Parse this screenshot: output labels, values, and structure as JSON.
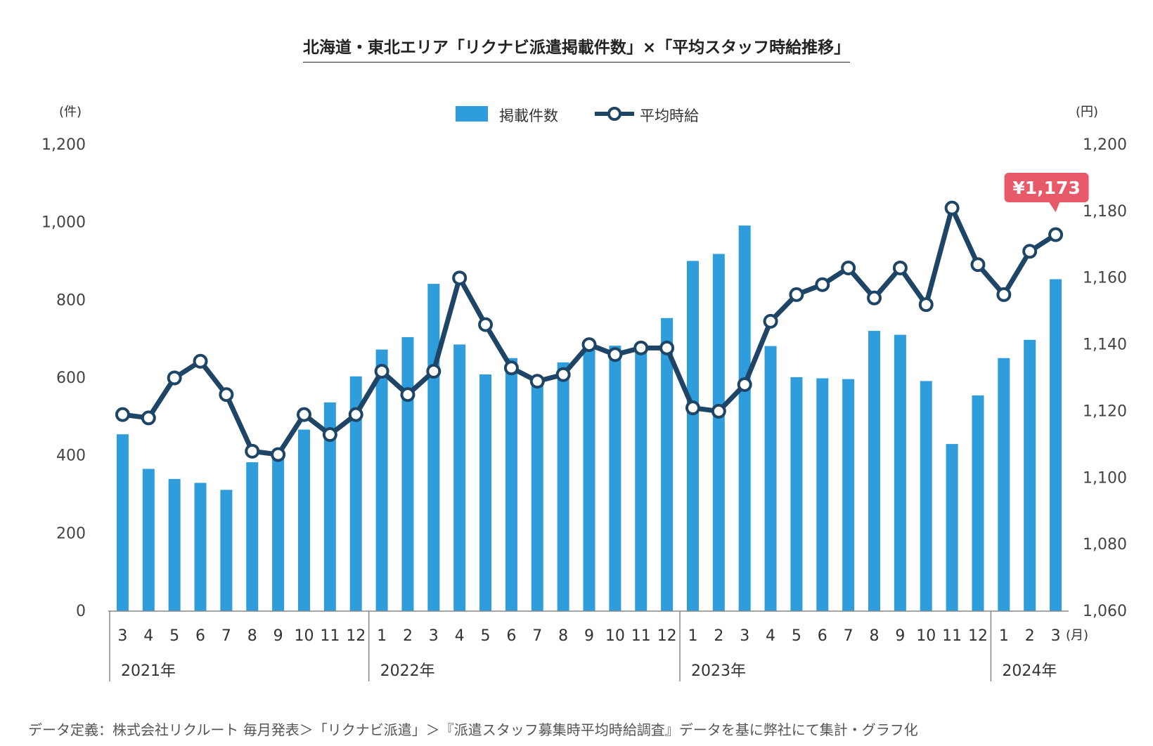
{
  "title": "北海道・東北エリア「リクナビ派遣掲載件数」×「平均スタッフ時給推移」",
  "units": {
    "left": "(件)",
    "right": "(円)",
    "month": "(月)"
  },
  "legend": {
    "bars": "掲載件数",
    "line": "平均時給"
  },
  "callout": {
    "text": "¥1,173"
  },
  "source": "データ定義：株式会社リクルート 毎月発表＞「リクナビ派遣」＞『派遣スタッフ募集時平均時給調査』データを基に弊社にて集計・グラフ化",
  "colors": {
    "bar": "#2f9ddb",
    "line": "#1e4565",
    "callout": "#e8596a",
    "axis": "#888888"
  },
  "chart_data": {
    "type": "bar+line",
    "x": [
      "3",
      "4",
      "5",
      "6",
      "7",
      "8",
      "9",
      "10",
      "11",
      "12",
      "1",
      "2",
      "3",
      "4",
      "5",
      "6",
      "7",
      "8",
      "9",
      "10",
      "11",
      "12",
      "1",
      "2",
      "3",
      "4",
      "5",
      "6",
      "7",
      "8",
      "9",
      "10",
      "11",
      "12",
      "1",
      "2",
      "3"
    ],
    "years": [
      {
        "label": "2021年",
        "start": 0,
        "end": 9
      },
      {
        "label": "2022年",
        "start": 10,
        "end": 21
      },
      {
        "label": "2023年",
        "start": 22,
        "end": 33
      },
      {
        "label": "2024年",
        "start": 34,
        "end": 36
      }
    ],
    "series": [
      {
        "name": "掲載件数",
        "type": "bar",
        "axis": "left",
        "values": [
          455,
          366,
          340,
          330,
          312,
          383,
          400,
          467,
          537,
          604,
          673,
          705,
          842,
          686,
          609,
          651,
          583,
          640,
          673,
          683,
          673,
          754,
          901,
          919,
          992,
          682,
          602,
          599,
          597,
          721,
          711,
          592,
          430,
          555,
          651,
          698,
          854
        ]
      },
      {
        "name": "平均時給",
        "type": "line",
        "axis": "right",
        "values": [
          1119,
          1118,
          1130,
          1135,
          1125,
          1108,
          1107,
          1119,
          1113,
          1119,
          1132,
          1125,
          1132,
          1160,
          1146,
          1133,
          1129,
          1131,
          1140,
          1137,
          1139,
          1139,
          1121,
          1120,
          1128,
          1147,
          1155,
          1158,
          1163,
          1154,
          1163,
          1152,
          1181,
          1164,
          1155,
          1168,
          1173
        ]
      }
    ],
    "left_axis": {
      "min": 0,
      "max": 1200,
      "ticks": [
        0,
        200,
        400,
        600,
        800,
        1000,
        1200
      ],
      "tick_labels": [
        "0",
        "200",
        "400",
        "600",
        "800",
        "1,000",
        "1,200"
      ]
    },
    "right_axis": {
      "min": 1060,
      "max": 1200,
      "ticks": [
        1060,
        1080,
        1100,
        1120,
        1140,
        1160,
        1180,
        1200
      ],
      "tick_labels": [
        "1,060",
        "1,080",
        "1,100",
        "1,120",
        "1,140",
        "1,160",
        "1,180",
        "1,200"
      ]
    },
    "legend_position": "top-center",
    "grid": false
  }
}
